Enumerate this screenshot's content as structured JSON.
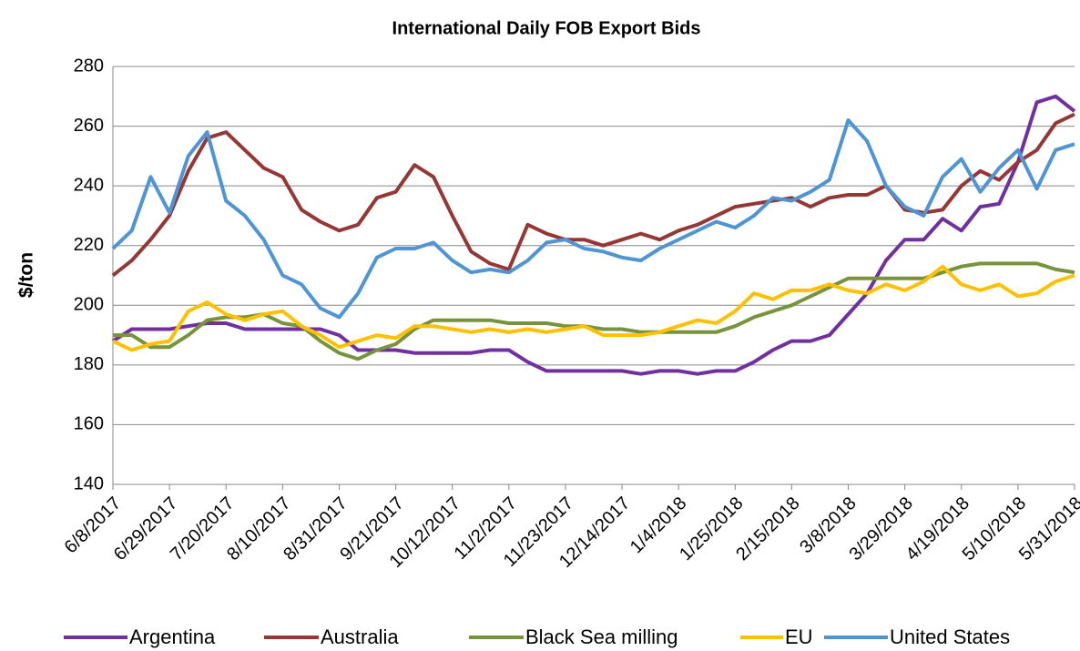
{
  "chart_data": {
    "type": "line",
    "title": "International Daily FOB Export Bids",
    "ylabel": "$/ton",
    "categories": [
      "6/8/2017",
      null,
      null,
      "6/29/2017",
      null,
      null,
      "7/20/2017",
      null,
      null,
      "8/10/2017",
      null,
      null,
      "8/31/2017",
      null,
      null,
      "9/21/2017",
      null,
      null,
      "10/12/2017",
      null,
      null,
      "11/2/2017",
      null,
      null,
      "11/23/2017",
      null,
      null,
      "12/14/2017",
      null,
      null,
      "1/4/2018",
      null,
      null,
      "1/25/2018",
      null,
      null,
      "2/15/2018",
      null,
      null,
      "3/8/2018",
      null,
      null,
      "3/29/2018",
      null,
      null,
      "4/19/2018",
      null,
      null,
      "5/10/2018",
      null,
      null,
      "5/31/2018"
    ],
    "series": [
      {
        "name": "Argentina",
        "color": "#7030a0",
        "values": [
          188,
          192,
          192,
          192,
          193,
          194,
          194,
          192,
          192,
          192,
          192,
          192,
          190,
          185,
          185,
          185,
          184,
          184,
          184,
          184,
          185,
          185,
          181,
          178,
          178,
          178,
          178,
          178,
          177,
          178,
          178,
          177,
          178,
          178,
          181,
          185,
          188,
          188,
          190,
          197,
          204,
          215,
          222,
          222,
          229,
          225,
          233,
          234,
          248,
          268,
          270,
          265
        ]
      },
      {
        "name": "Australia",
        "color": "#953735",
        "values": [
          210,
          215,
          222,
          230,
          245,
          256,
          258,
          252,
          246,
          243,
          232,
          228,
          225,
          227,
          236,
          238,
          247,
          243,
          230,
          218,
          214,
          212,
          227,
          224,
          222,
          222,
          220,
          222,
          224,
          222,
          225,
          227,
          230,
          233,
          234,
          235,
          236,
          233,
          236,
          237,
          237,
          240,
          232,
          231,
          232,
          240,
          245,
          242,
          248,
          252,
          261,
          264
        ]
      },
      {
        "name": "Black Sea milling",
        "color": "#77933c",
        "values": [
          190,
          190,
          186,
          186,
          190,
          195,
          196,
          196,
          197,
          194,
          193,
          188,
          184,
          182,
          185,
          187,
          192,
          195,
          195,
          195,
          195,
          194,
          194,
          194,
          193,
          193,
          192,
          192,
          191,
          191,
          191,
          191,
          191,
          193,
          196,
          198,
          200,
          203,
          206,
          209,
          209,
          209,
          209,
          209,
          211,
          213,
          214,
          214,
          214,
          214,
          212,
          211
        ]
      },
      {
        "name": "EU",
        "color": "#ffc000",
        "values": [
          188,
          185,
          187,
          188,
          198,
          201,
          197,
          195,
          197,
          198,
          193,
          190,
          186,
          188,
          190,
          189,
          193,
          193,
          192,
          191,
          192,
          191,
          192,
          191,
          192,
          193,
          190,
          190,
          190,
          191,
          193,
          195,
          194,
          198,
          204,
          202,
          205,
          205,
          207,
          205,
          204,
          207,
          205,
          208,
          213,
          207,
          205,
          207,
          203,
          204,
          208,
          210
        ]
      },
      {
        "name": "United States",
        "color": "#4f95d6",
        "values": [
          219,
          225,
          243,
          231,
          250,
          258,
          235,
          230,
          222,
          210,
          207,
          199,
          196,
          204,
          216,
          219,
          219,
          221,
          215,
          211,
          212,
          211,
          215,
          221,
          222,
          219,
          218,
          216,
          215,
          219,
          222,
          225,
          228,
          226,
          230,
          236,
          235,
          238,
          242,
          262,
          255,
          240,
          233,
          230,
          243,
          249,
          238,
          246,
          252,
          239,
          252,
          254
        ]
      }
    ],
    "ylim": [
      140,
      280
    ],
    "yticks": [
      140,
      160,
      180,
      200,
      220,
      240,
      260,
      280
    ],
    "grid": true,
    "legend": "bottom"
  }
}
